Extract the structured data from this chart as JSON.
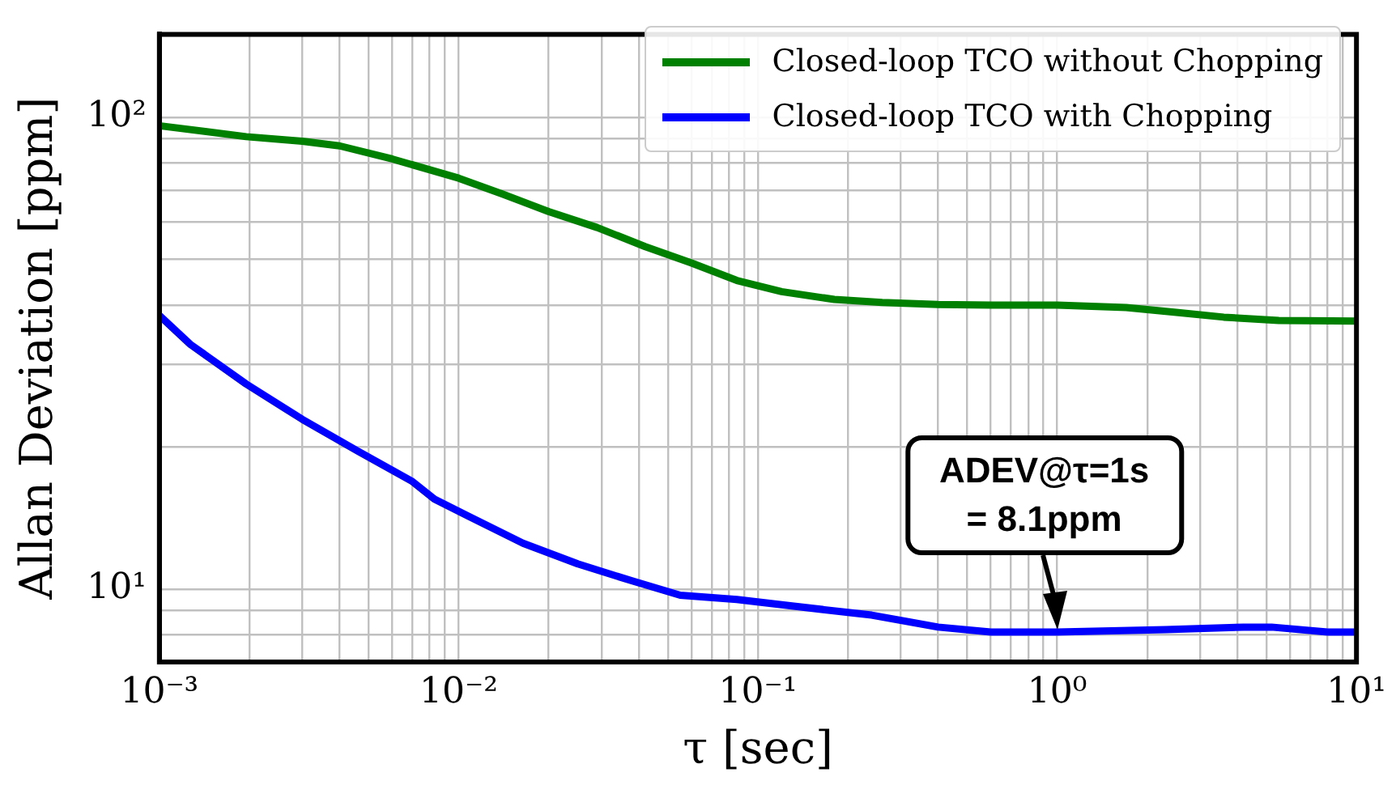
{
  "chart_data": {
    "type": "line",
    "xlabel": "τ [sec]",
    "ylabel": "Allan Deviation [ppm]",
    "log": "xy",
    "grid": true,
    "legend": "top right",
    "line_style": "solid",
    "marker": "none",
    "xlim": [
      0.001,
      10
    ],
    "xticks": [
      {
        "value": 0.001,
        "label": "10⁻³"
      },
      {
        "value": 0.002,
        "label": null
      },
      {
        "value": 0.003,
        "label": null
      },
      {
        "value": 0.004,
        "label": null
      },
      {
        "value": 0.005,
        "label": null
      },
      {
        "value": 0.006,
        "label": null
      },
      {
        "value": 0.007,
        "label": null
      },
      {
        "value": 0.008,
        "label": null
      },
      {
        "value": 0.009,
        "label": null
      },
      {
        "value": 0.01,
        "label": "10⁻²"
      },
      {
        "value": 0.02,
        "label": null
      },
      {
        "value": 0.03,
        "label": null
      },
      {
        "value": 0.04,
        "label": null
      },
      {
        "value": 0.05,
        "label": null
      },
      {
        "value": 0.06,
        "label": null
      },
      {
        "value": 0.07,
        "label": null
      },
      {
        "value": 0.08,
        "label": null
      },
      {
        "value": 0.09,
        "label": null
      },
      {
        "value": 0.1,
        "label": "10⁻¹"
      },
      {
        "value": 0.2,
        "label": null
      },
      {
        "value": 0.3,
        "label": null
      },
      {
        "value": 0.4,
        "label": null
      },
      {
        "value": 0.5,
        "label": null
      },
      {
        "value": 0.6,
        "label": null
      },
      {
        "value": 0.7,
        "label": null
      },
      {
        "value": 0.8,
        "label": null
      },
      {
        "value": 0.9,
        "label": null
      },
      {
        "value": 1,
        "label": "10⁰"
      },
      {
        "value": 2,
        "label": null
      },
      {
        "value": 3,
        "label": null
      },
      {
        "value": 4,
        "label": null
      },
      {
        "value": 5,
        "label": null
      },
      {
        "value": 6,
        "label": null
      },
      {
        "value": 7,
        "label": null
      },
      {
        "value": 8,
        "label": null
      },
      {
        "value": 9,
        "label": null
      },
      {
        "value": 10,
        "label": "10¹"
      }
    ],
    "ylim": [
      7,
      150
    ],
    "yticks": [
      {
        "value": 7,
        "label": null
      },
      {
        "value": 8,
        "label": null
      },
      {
        "value": 9,
        "label": null
      },
      {
        "value": 10,
        "label": "10¹"
      },
      {
        "value": 20,
        "label": null
      },
      {
        "value": 30,
        "label": null
      },
      {
        "value": 40,
        "label": null
      },
      {
        "value": 50,
        "label": null
      },
      {
        "value": 60,
        "label": null
      },
      {
        "value": 70,
        "label": null
      },
      {
        "value": 80,
        "label": null
      },
      {
        "value": 90,
        "label": null
      },
      {
        "value": 100,
        "label": "10²"
      }
    ],
    "series": [
      {
        "name": "Closed-loop TCO without Chopping",
        "color": "#008000",
        "x": [
          0.001,
          0.00195,
          0.003,
          0.004,
          0.006,
          0.01,
          0.014,
          0.02,
          0.029,
          0.042,
          0.06,
          0.085,
          0.12,
          0.18,
          0.26,
          0.4,
          0.6,
          1,
          1.7,
          2.5,
          3.6,
          5.5,
          10
        ],
        "values": [
          96,
          91,
          89,
          87,
          81.6,
          74.3,
          68.8,
          63.1,
          58.4,
          53.2,
          49.1,
          45.1,
          42.7,
          41.1,
          40.5,
          40.1,
          40,
          40,
          39.5,
          38.6,
          37.7,
          37.1,
          37
        ]
      },
      {
        "name": "Closed-loop TCO with Chopping",
        "color": "#0000ff",
        "x": [
          0.001,
          0.00127,
          0.00195,
          0.003,
          0.0046,
          0.007,
          0.0083,
          0.0107,
          0.0164,
          0.025,
          0.038,
          0.055,
          0.085,
          0.13,
          0.24,
          0.4,
          0.6,
          1,
          2.3,
          4.2,
          5.2,
          8,
          10
        ],
        "values": [
          38,
          33,
          27.2,
          22.9,
          19.6,
          16.9,
          15.5,
          14.3,
          12.5,
          11.3,
          10.4,
          9.7,
          9.5,
          9.2,
          8.8,
          8.3,
          8.1,
          8.1,
          8.2,
          8.3,
          8.3,
          8.1,
          8.1
        ]
      }
    ],
    "annotations": [
      {
        "text": "ADEV@τ=1s\n= 8.1ppm",
        "x": 1,
        "y": 8.1
      }
    ]
  }
}
